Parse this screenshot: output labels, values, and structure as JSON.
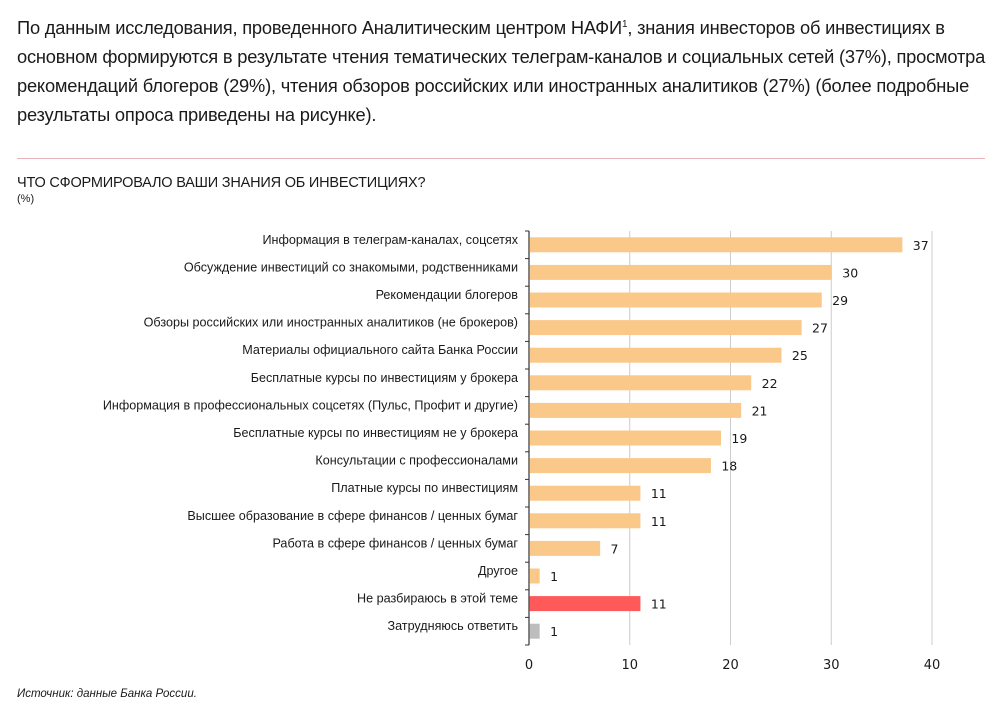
{
  "intro": {
    "text_before": "По данным исследования, проведенного Аналитическим центром НАФИ",
    "footnote_mark": "1",
    "text_after": ", знания инвесторов об инвестициях в основном формируются в результате чтения тематических телеграм-каналов и социальных сетей (37%), просмотра рекомендаций блогеров (29%), чтения обзоров российских или иностранных аналитиков (27%) (более подробные результаты опроса приведены на рисунке)."
  },
  "source": "Источник: данные Банка России.",
  "chart_data": {
    "type": "bar",
    "orientation": "horizontal",
    "title": "ЧТО СФОРМИРОВАЛО ВАШИ ЗНАНИЯ ОБ ИНВЕСТИЦИЯХ?",
    "unit": "(%)",
    "categories": [
      "Информация в телеграм-каналах, соцсетях",
      "Обсуждение инвестиций со знакомыми, родственниками",
      "Рекомендации блогеров",
      "Обзоры российских или иностранных аналитиков (не брокеров)",
      "Материалы официального сайта Банка России",
      "Бесплатные курсы по инвестициям у брокера",
      "Информация в профессиональных соцсетях (Пульс, Профит и другие)",
      "Бесплатные курсы по инвестициям не у брокера",
      "Консультации с профессионалами",
      "Платные курсы по инвестициям",
      "Высшее образование в сфере финансов / ценных бумаг",
      "Работа в сфере финансов / ценных бумаг",
      "Другое",
      "Не разбираюсь в этой теме",
      "Затрудняюсь ответить"
    ],
    "values": [
      37,
      30,
      29,
      27,
      25,
      22,
      21,
      19,
      18,
      11,
      11,
      7,
      1,
      11,
      1
    ],
    "bar_colors": [
      "#fac98a",
      "#fac98a",
      "#fac98a",
      "#fac98a",
      "#fac98a",
      "#fac98a",
      "#fac98a",
      "#fac98a",
      "#fac98a",
      "#fac98a",
      "#fac98a",
      "#fac98a",
      "#fac98a",
      "#ff5a5a",
      "#bdbdbd"
    ],
    "xlim": [
      0,
      40
    ],
    "xticks": [
      "0",
      "10",
      "20",
      "30",
      "40"
    ],
    "grid": "vertical",
    "legend": "none"
  },
  "colors": {
    "separator": "#e8b4bc",
    "grid": "#cccccc"
  }
}
